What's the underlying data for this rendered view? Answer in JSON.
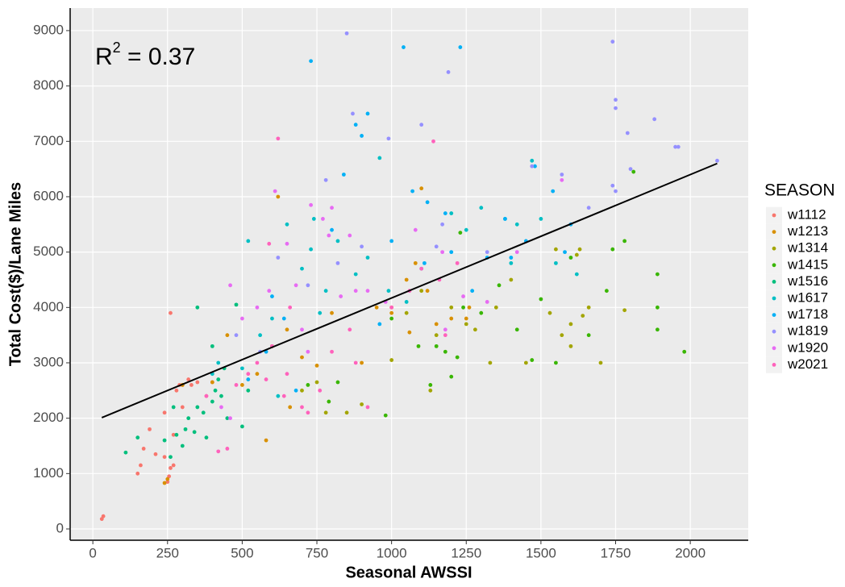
{
  "chart_data": {
    "type": "scatter",
    "x_label": "Seasonal AWSSI",
    "y_label": "Total Cost($)/Lane Miles",
    "annotation": {
      "base": "R",
      "superscript": "2",
      "rest": " = 0.37"
    },
    "xlim": [
      -76,
      2194
    ],
    "ylim": [
      -204,
      9407
    ],
    "xticks": [
      0,
      250,
      500,
      750,
      1000,
      1250,
      1500,
      1750,
      2000
    ],
    "yticks": [
      0,
      1000,
      2000,
      3000,
      4000,
      5000,
      6000,
      7000,
      8000,
      9000
    ],
    "grid": true,
    "legend_title": "SEASON",
    "legend_position": "right",
    "fit_line": {
      "color": "#000000",
      "x": [
        30,
        2090
      ],
      "values": [
        2010,
        6600
      ]
    },
    "series": [
      {
        "name": "w1112",
        "color": "#F8766D",
        "x": [
          30,
          35,
          150,
          160,
          170,
          190,
          210,
          240,
          250,
          255,
          260,
          270,
          260,
          280,
          290,
          300,
          320,
          330,
          350,
          380,
          400,
          300,
          240,
          270
        ],
        "values": [
          180,
          230,
          1000,
          1150,
          1450,
          1800,
          1350,
          2100,
          850,
          950,
          1100,
          1150,
          3900,
          2500,
          2600,
          2600,
          2700,
          2600,
          2650,
          2400,
          2650,
          2200,
          1300,
          1700
        ]
      },
      {
        "name": "w1213",
        "color": "#D89000",
        "x": [
          240,
          250,
          300,
          400,
          450,
          500,
          550,
          580,
          600,
          620,
          650,
          700,
          750,
          800,
          900,
          1000,
          1050,
          1080,
          1100,
          1150,
          1200,
          1250,
          1000,
          950,
          1120,
          1260,
          1060,
          660
        ],
        "values": [
          830,
          900,
          2600,
          2650,
          3500,
          2600,
          2800,
          1600,
          3300,
          6000,
          3600,
          3100,
          2950,
          3900,
          3000,
          4000,
          4500,
          4800,
          6150,
          3700,
          3800,
          3800,
          3900,
          4000,
          4300,
          4000,
          3550,
          2200
        ]
      },
      {
        "name": "w1314",
        "color": "#A3A500",
        "x": [
          1000,
          1050,
          1100,
          1130,
          1150,
          1200,
          1250,
          1280,
          1330,
          1350,
          1400,
          1450,
          1530,
          1570,
          1600,
          1620,
          1630,
          1640,
          1700,
          1780,
          1600,
          1660,
          1550,
          850,
          780,
          900,
          700,
          750
        ],
        "values": [
          3050,
          3900,
          4300,
          2500,
          3500,
          4000,
          3700,
          3600,
          3000,
          4000,
          4500,
          3000,
          3900,
          3500,
          3700,
          4950,
          5050,
          3850,
          3000,
          3950,
          3300,
          4000,
          5050,
          2100,
          2100,
          2250,
          2500,
          2650
        ]
      },
      {
        "name": "w1415",
        "color": "#39B600",
        "x": [
          1130,
          1150,
          1180,
          1200,
          1220,
          1230,
          1240,
          1300,
          1360,
          1420,
          1470,
          1500,
          1550,
          1600,
          1720,
          1740,
          1780,
          1810,
          1890,
          1890,
          1890,
          1980,
          1660,
          980,
          820,
          790,
          720,
          1000,
          1090
        ],
        "values": [
          2600,
          3300,
          3200,
          2750,
          3100,
          5350,
          4000,
          3900,
          4400,
          3600,
          3050,
          4150,
          3000,
          4900,
          4300,
          5050,
          5200,
          6450,
          4000,
          4600,
          3600,
          3200,
          3500,
          2050,
          2650,
          2300,
          2600,
          3800,
          3300
        ]
      },
      {
        "name": "w1516",
        "color": "#00BF7D",
        "x": [
          110,
          150,
          240,
          260,
          270,
          300,
          320,
          340,
          350,
          380,
          400,
          410,
          420,
          430,
          450,
          480,
          500,
          520,
          400,
          370,
          280,
          310,
          440,
          350
        ],
        "values": [
          1380,
          1650,
          1600,
          1300,
          2200,
          1500,
          2000,
          1750,
          4000,
          1650,
          2300,
          2500,
          2700,
          2400,
          2000,
          4050,
          1850,
          2500,
          3300,
          2100,
          1700,
          1800,
          2900,
          2200
        ]
      },
      {
        "name": "w1617",
        "color": "#00BFC4",
        "x": [
          400,
          420,
          500,
          520,
          560,
          600,
          620,
          650,
          700,
          730,
          740,
          760,
          780,
          820,
          880,
          920,
          960,
          990,
          1050,
          1100,
          1200,
          1250,
          1300,
          1380,
          1420,
          1500,
          1550,
          1620,
          1400,
          1470
        ],
        "values": [
          2800,
          3000,
          2900,
          5200,
          3500,
          3800,
          2400,
          5500,
          4700,
          5050,
          5600,
          3900,
          4300,
          5200,
          4600,
          4900,
          6700,
          4300,
          4100,
          4700,
          5700,
          5400,
          5800,
          5600,
          5500,
          5600,
          4800,
          4600,
          4800,
          6650
        ]
      },
      {
        "name": "w1718",
        "color": "#00B0F6",
        "x": [
          520,
          580,
          600,
          640,
          680,
          730,
          800,
          840,
          880,
          900,
          920,
          960,
          1000,
          1040,
          1070,
          1120,
          1180,
          1200,
          1230,
          1270,
          1320,
          1400,
          1450,
          1540,
          1580,
          1600,
          1480,
          1380,
          1110
        ],
        "values": [
          2700,
          3200,
          4200,
          3800,
          2500,
          8450,
          5400,
          6400,
          7300,
          7100,
          7500,
          3700,
          5200,
          8700,
          6100,
          5900,
          5700,
          5000,
          8700,
          4300,
          4900,
          4900,
          5200,
          6100,
          5000,
          5500,
          6550,
          5600,
          4800
        ]
      },
      {
        "name": "w1819",
        "color": "#9590FF",
        "x": [
          480,
          560,
          620,
          720,
          780,
          820,
          850,
          870,
          900,
          990,
          1100,
          1150,
          1170,
          1190,
          1320,
          1470,
          1570,
          1740,
          1750,
          1750,
          1740,
          1750,
          1790,
          1800,
          1880,
          1950,
          1960,
          2090,
          1660
        ],
        "values": [
          3500,
          3200,
          4900,
          4400,
          6300,
          4800,
          8950,
          7500,
          5100,
          7050,
          7300,
          5100,
          5500,
          8250,
          5000,
          6550,
          6400,
          8800,
          7750,
          7600,
          6200,
          6100,
          7150,
          6500,
          7400,
          6900,
          6900,
          6650,
          5800
        ]
      },
      {
        "name": "w1920",
        "color": "#E76BF3",
        "x": [
          430,
          460,
          460,
          500,
          550,
          590,
          610,
          650,
          680,
          700,
          720,
          730,
          770,
          790,
          800,
          830,
          860,
          880,
          920,
          980,
          1080,
          1170,
          1180,
          1240,
          1320,
          1420,
          1570
        ],
        "values": [
          2200,
          2000,
          4400,
          3800,
          4000,
          4300,
          6100,
          5150,
          4400,
          3600,
          3200,
          5850,
          5600,
          5300,
          5800,
          4200,
          5300,
          4300,
          4300,
          4100,
          5400,
          5000,
          3600,
          4200,
          4100,
          5000,
          6300
        ]
      },
      {
        "name": "w2021",
        "color": "#FF62BC",
        "x": [
          380,
          420,
          450,
          480,
          520,
          550,
          580,
          600,
          620,
          640,
          660,
          700,
          720,
          760,
          800,
          860,
          880,
          920,
          1000,
          1060,
          1140,
          1160,
          1180,
          1220,
          1100,
          650,
          590
        ],
        "values": [
          2400,
          1400,
          1450,
          2600,
          2800,
          3000,
          2700,
          3300,
          7050,
          2400,
          4000,
          2200,
          2100,
          2500,
          3200,
          3600,
          3000,
          2200,
          4000,
          4300,
          7000,
          4500,
          3500,
          4800,
          4700,
          2800,
          5150
        ]
      }
    ]
  }
}
